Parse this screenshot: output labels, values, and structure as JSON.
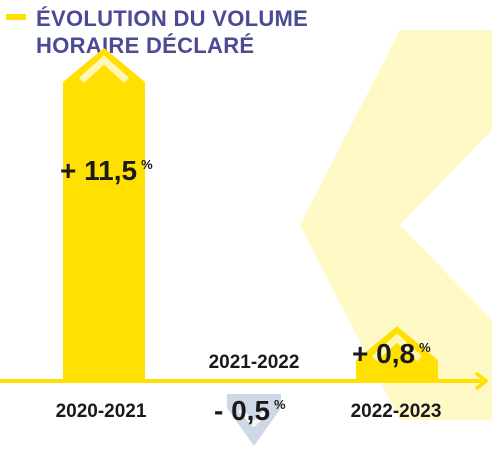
{
  "title": {
    "lines": [
      "ÉVOLUTION DU VOLUME",
      "HORAIRE DÉCLARÉ"
    ]
  },
  "colors": {
    "accent": "#ffe000",
    "accent_light": "#fff7b3",
    "negative": "#cfd8e6",
    "title": "#4b4a94",
    "text": "#1a1a1a"
  },
  "chart_data": {
    "type": "bar",
    "title": "ÉVOLUTION DU VOLUME HORAIRE DÉCLARÉ",
    "xlabel": "",
    "ylabel": "",
    "categories": [
      "2020-2021",
      "2021-2022",
      "2022-2023"
    ],
    "values": [
      11.5,
      -0.5,
      0.8
    ],
    "labels": [
      {
        "sign": "+ ",
        "number": "11,5",
        "unit": "%"
      },
      {
        "sign": "- ",
        "number": "0,5",
        "unit": "%"
      },
      {
        "sign": "+ ",
        "number": "0,8",
        "unit": "%"
      }
    ],
    "legend": "none",
    "grid": false
  }
}
